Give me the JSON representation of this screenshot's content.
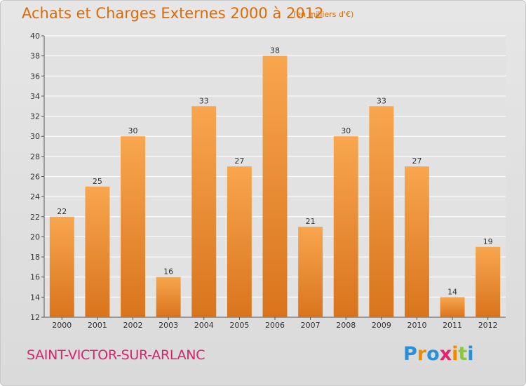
{
  "header": {
    "title": "Achats et Charges Externes 2000 à 2012",
    "subtitle": "(en milliers d'€)"
  },
  "footer": {
    "commune": "SAINT-VICTOR-SUR-ARLANC",
    "logo_letters": [
      "P",
      "r",
      "o",
      "x",
      "i",
      "t",
      "i"
    ],
    "logo_colors": [
      "#2a8fd6",
      "#f08a00",
      "#2a8fd6",
      "#e2236f",
      "#f08a00",
      "#8cc63f",
      "#2a8fd6"
    ]
  },
  "colors": {
    "bar_light": "#f8a64e",
    "bar_dark": "#d9741c",
    "grid": "#ffffff",
    "plot_bg": "#e2e2e2"
  },
  "chart_data": {
    "type": "bar",
    "title": "Achats et Charges Externes 2000 à 2012",
    "subtitle": "(en milliers d'€)",
    "categories": [
      "2000",
      "2001",
      "2002",
      "2003",
      "2004",
      "2005",
      "2006",
      "2007",
      "2008",
      "2009",
      "2010",
      "2011",
      "2012"
    ],
    "values": [
      22,
      25,
      30,
      16,
      33,
      27,
      38,
      21,
      30,
      33,
      27,
      14,
      19
    ],
    "ylim": [
      12,
      40
    ],
    "yticks": [
      12,
      14,
      16,
      18,
      20,
      22,
      24,
      26,
      28,
      30,
      32,
      34,
      36,
      38,
      40
    ],
    "grid": true,
    "xlabel": "",
    "ylabel": ""
  }
}
